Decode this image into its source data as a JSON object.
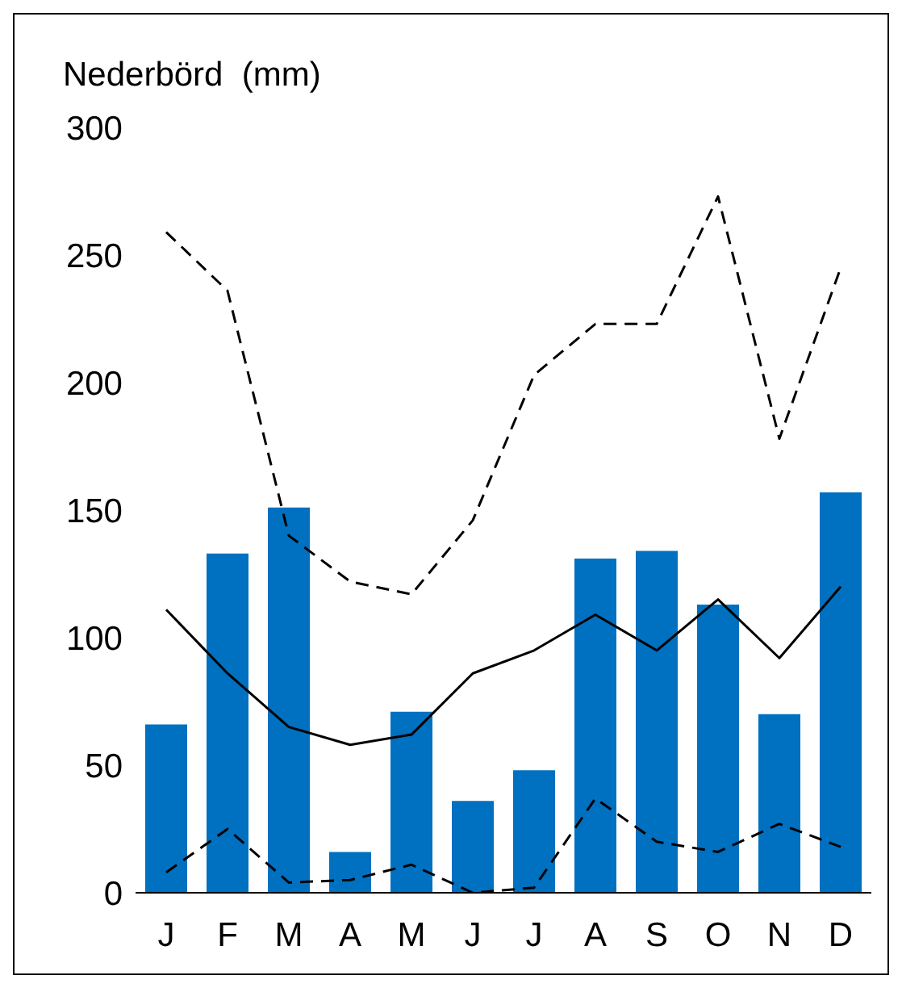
{
  "chart_data": {
    "type": "bar",
    "ylabel": "Nederbörd  (mm)",
    "categories": [
      "J",
      "F",
      "M",
      "A",
      "M",
      "J",
      "J",
      "A",
      "S",
      "O",
      "N",
      "D"
    ],
    "series": [
      {
        "color": "#0070c0",
        "values": [
          66,
          133,
          151,
          16,
          71,
          36,
          48,
          131,
          134,
          113,
          70,
          157
        ]
      },
      {
        "type": "line",
        "color": "#000000",
        "line_style": "solid",
        "values": [
          111,
          86,
          65,
          58,
          62,
          86,
          95,
          109,
          95,
          115,
          92,
          120
        ]
      },
      {
        "type": "line",
        "color": "#000000",
        "line_style": "dashed",
        "values": [
          259,
          236,
          140,
          122,
          117,
          146,
          203,
          223,
          223,
          273,
          178,
          245
        ]
      },
      {
        "type": "line",
        "color": "#000000",
        "line_style": "dashed",
        "values": [
          8,
          25,
          4,
          5,
          11,
          0,
          2,
          37,
          20,
          16,
          27,
          18
        ]
      }
    ],
    "ylim": [
      0,
      300
    ],
    "yticks": [
      0,
      50,
      100,
      150,
      200,
      250,
      300
    ],
    "grid": false,
    "legend": false,
    "marker": "none"
  }
}
